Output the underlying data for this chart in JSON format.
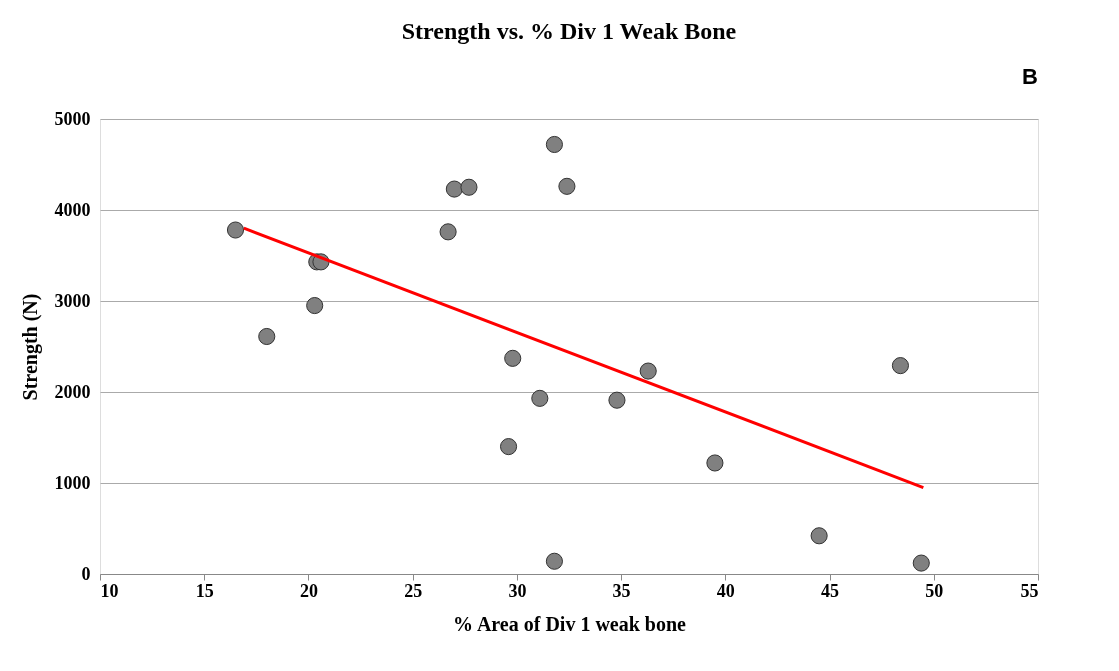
{
  "chart_data": {
    "type": "scatter",
    "title": "Strength vs. % Div 1 Weak Bone",
    "xlabel": "% Area of Div 1 weak bone",
    "ylabel": "Strength (N)",
    "annotations": [
      "B"
    ],
    "xlim": [
      10,
      55
    ],
    "xticks": [
      10,
      15,
      20,
      25,
      30,
      35,
      40,
      45,
      50,
      55
    ],
    "ylim": [
      0,
      5000
    ],
    "yticks": [
      0,
      1000,
      2000,
      3000,
      4000,
      5000
    ],
    "grid": "y",
    "series": [
      {
        "color": "#808080",
        "marker": "circle",
        "x": [
          16.5,
          18.0,
          20.3,
          20.4,
          20.6,
          26.7,
          27.0,
          27.7,
          31.8,
          32.4,
          29.8,
          29.6,
          31.1,
          34.8,
          36.3,
          39.5,
          31.8,
          44.5,
          48.4,
          49.4
        ],
        "values": [
          3780,
          2610,
          2950,
          3430,
          3430,
          3760,
          4230,
          4250,
          4720,
          4260,
          2370,
          1400,
          1930,
          1910,
          2230,
          1220,
          140,
          420,
          2290,
          120
        ]
      },
      {
        "type": "line",
        "color": "#ff0000",
        "x": [
          16.9,
          49.5
        ],
        "values": [
          3800,
          950
        ]
      }
    ]
  }
}
